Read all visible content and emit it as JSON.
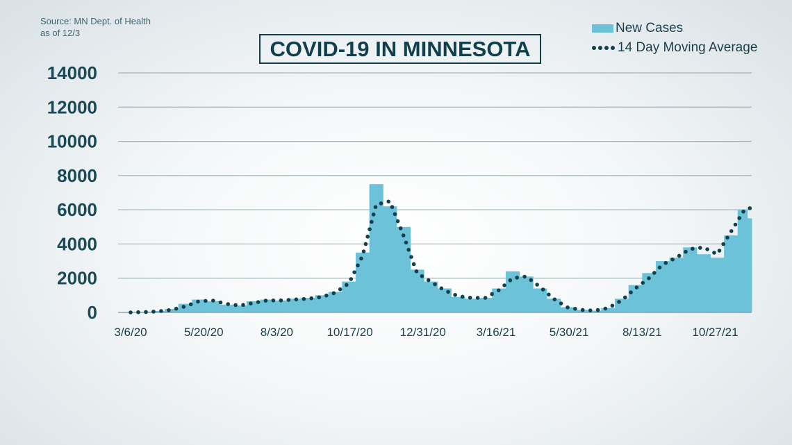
{
  "source": {
    "line1": "Source: MN Dept. of Health",
    "line2": "as of 12/3"
  },
  "colors": {
    "bars": "#6cc3d9",
    "average": "#123f4c",
    "title": "#123f4c",
    "grid": "#8fa3a9"
  },
  "chart_data": {
    "type": "bar",
    "title": "COVID-19 IN MINNESOTA",
    "xlabel": "",
    "ylabel": "",
    "ylim": [
      0,
      14000
    ],
    "y_ticks": [
      "0",
      "2000",
      "4000",
      "6000",
      "8000",
      "10000",
      "12000",
      "14000"
    ],
    "grid": true,
    "legend_position": "top-right",
    "x_tick_labels": [
      "3/6/20",
      "5/20/20",
      "8/3/20",
      "10/17/20",
      "12/31/20",
      "3/16/21",
      "5/30/21",
      "8/13/21",
      "10/27/21"
    ],
    "x_range": [
      "3/6/20",
      "12/2/21"
    ],
    "series": [
      {
        "name": "New Cases",
        "kind": "bar",
        "x": [
          "3/6/20",
          "3/20/20",
          "4/3/20",
          "4/17/20",
          "5/1/20",
          "5/15/20",
          "5/29/20",
          "6/12/20",
          "6/26/20",
          "7/10/20",
          "7/24/20",
          "8/7/20",
          "8/21/20",
          "9/4/20",
          "9/18/20",
          "10/2/20",
          "10/16/20",
          "10/30/20",
          "11/13/20",
          "11/27/20",
          "12/11/20",
          "12/25/20",
          "1/8/21",
          "1/22/21",
          "2/5/21",
          "2/19/21",
          "3/5/21",
          "3/19/21",
          "4/2/21",
          "4/16/21",
          "4/30/21",
          "5/14/21",
          "5/28/21",
          "6/11/21",
          "6/25/21",
          "7/9/21",
          "7/23/21",
          "8/6/21",
          "8/20/21",
          "9/3/21",
          "9/17/21",
          "10/1/21",
          "10/15/21",
          "10/29/21",
          "11/12/21",
          "11/26/21",
          "12/2/21"
        ],
        "values": [
          5,
          30,
          80,
          200,
          500,
          750,
          650,
          450,
          400,
          650,
          750,
          700,
          800,
          850,
          1000,
          1200,
          1800,
          3500,
          7500,
          6200,
          5000,
          2500,
          1800,
          1400,
          900,
          800,
          850,
          1400,
          2400,
          2100,
          1400,
          800,
          300,
          150,
          100,
          250,
          800,
          1600,
          2300,
          3000,
          3200,
          3800,
          3400,
          3200,
          4500,
          6000,
          5500
        ]
      },
      {
        "name": "14 Day Moving Average",
        "kind": "dotted-line",
        "x": [
          "3/6/20",
          "3/20/20",
          "4/3/20",
          "4/17/20",
          "5/1/20",
          "5/15/20",
          "5/29/20",
          "6/12/20",
          "6/26/20",
          "7/10/20",
          "7/24/20",
          "8/7/20",
          "8/21/20",
          "9/4/20",
          "9/18/20",
          "10/2/20",
          "10/16/20",
          "10/30/20",
          "11/13/20",
          "11/27/20",
          "12/11/20",
          "12/25/20",
          "1/8/21",
          "1/22/21",
          "2/5/21",
          "2/19/21",
          "3/5/21",
          "3/19/21",
          "4/2/21",
          "4/16/21",
          "4/30/21",
          "5/14/21",
          "5/28/21",
          "6/11/21",
          "6/25/21",
          "7/9/21",
          "7/23/21",
          "8/6/21",
          "8/20/21",
          "9/3/21",
          "9/17/21",
          "10/1/21",
          "10/15/21",
          "10/29/21",
          "11/12/21",
          "11/26/21",
          "12/2/21"
        ],
        "values": [
          0,
          20,
          60,
          150,
          350,
          650,
          700,
          500,
          400,
          550,
          700,
          700,
          750,
          800,
          900,
          1150,
          1700,
          3300,
          6300,
          6500,
          4500,
          2300,
          1800,
          1300,
          950,
          850,
          850,
          1300,
          2000,
          2100,
          1500,
          800,
          300,
          150,
          100,
          250,
          700,
          1400,
          2000,
          2800,
          3200,
          3700,
          3800,
          3400,
          4700,
          6000,
          6100
        ]
      }
    ]
  }
}
